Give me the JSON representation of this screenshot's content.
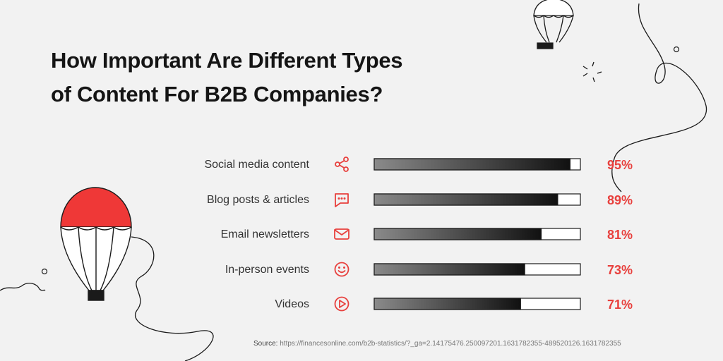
{
  "header": {
    "title_line1": "How Important Are Different Types",
    "title_line2": "of Content For B2B Companies?"
  },
  "colors": {
    "accent": "#e8403d",
    "bar_dark": "#111111",
    "bar_light": "#8a8a8a",
    "background": "#f2f2f2"
  },
  "chart_data": {
    "type": "bar",
    "orientation": "horizontal",
    "categories": [
      "Social media content",
      "Blog posts & articles",
      "Email newsletters",
      "In-person events",
      "Videos"
    ],
    "values": [
      95,
      89,
      81,
      73,
      71
    ],
    "value_labels": [
      "95%",
      "89%",
      "81%",
      "73%",
      "71%"
    ],
    "icons": [
      "share-icon",
      "chat-bubble-icon",
      "envelope-icon",
      "smiley-icon",
      "play-icon"
    ],
    "xlim": [
      0,
      100
    ],
    "unit": "%",
    "title": "How Important Are Different Types of Content For B2B Companies?",
    "xlabel": "",
    "ylabel": "",
    "grid": false,
    "legend": "none"
  },
  "footer": {
    "source_label": "Source:",
    "source_url": "https://financesonline.com/b2b-statistics/?_ga=2.14175476.250097201.1631782355-489520126.1631782355"
  }
}
